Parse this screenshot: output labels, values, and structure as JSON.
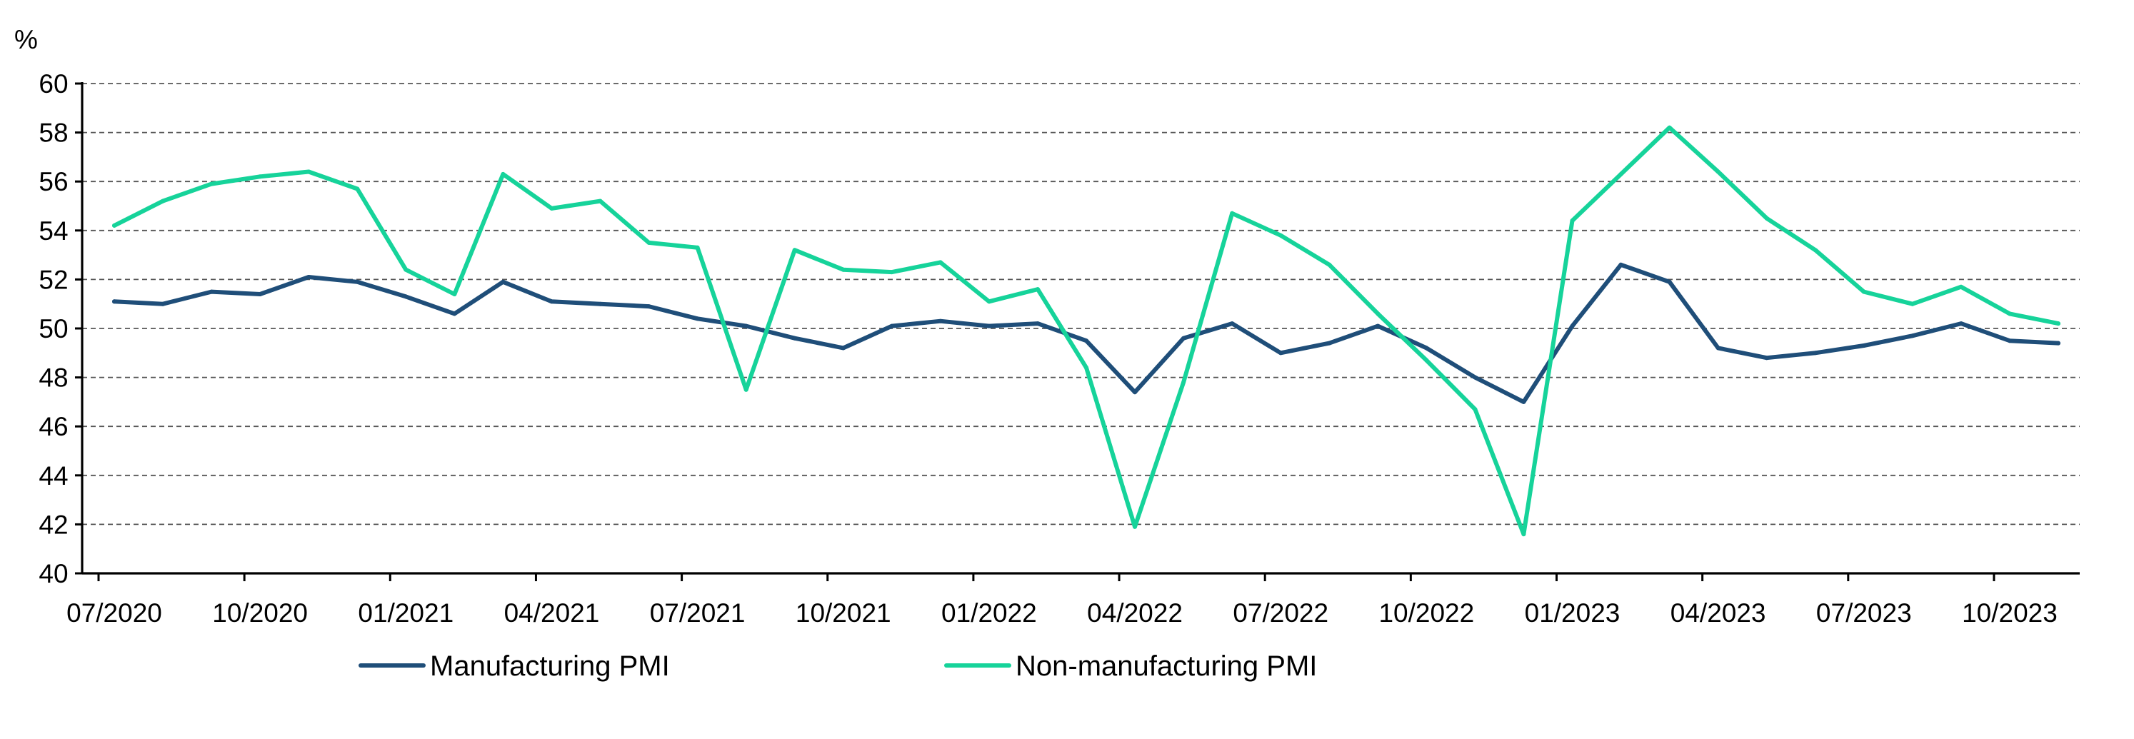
{
  "chart_data": {
    "type": "line",
    "title": "",
    "xlabel": "",
    "ylabel": "%",
    "ylim": [
      40,
      60
    ],
    "yticks": [
      40,
      42,
      44,
      46,
      48,
      50,
      52,
      54,
      56,
      58,
      60
    ],
    "grid": true,
    "legend_position": "bottom",
    "x": [
      "07/2020",
      "08/2020",
      "09/2020",
      "10/2020",
      "11/2020",
      "12/2020",
      "01/2021",
      "02/2021",
      "03/2021",
      "04/2021",
      "05/2021",
      "06/2021",
      "07/2021",
      "08/2021",
      "09/2021",
      "10/2021",
      "11/2021",
      "12/2021",
      "01/2022",
      "02/2022",
      "03/2022",
      "04/2022",
      "05/2022",
      "06/2022",
      "07/2022",
      "08/2022",
      "09/2022",
      "10/2022",
      "11/2022",
      "12/2022",
      "01/2023",
      "02/2023",
      "03/2023",
      "04/2023",
      "05/2023",
      "06/2023",
      "07/2023",
      "08/2023",
      "09/2023",
      "10/2023",
      "11/2023"
    ],
    "xticks": [
      "07/2020",
      "10/2020",
      "01/2021",
      "04/2021",
      "07/2021",
      "10/2021",
      "01/2022",
      "04/2022",
      "07/2022",
      "10/2022",
      "01/2023",
      "04/2023",
      "07/2023",
      "10/2023"
    ],
    "series": [
      {
        "name": "Manufacturing PMI",
        "color": "#1f4e79",
        "values": [
          51.1,
          51.0,
          51.5,
          51.4,
          52.1,
          51.9,
          51.3,
          50.6,
          51.9,
          51.1,
          51.0,
          50.9,
          50.4,
          50.1,
          49.6,
          49.2,
          50.1,
          50.3,
          50.1,
          50.2,
          49.5,
          47.4,
          49.6,
          50.2,
          49.0,
          49.4,
          50.1,
          49.2,
          48.0,
          47.0,
          50.1,
          52.6,
          51.9,
          49.2,
          48.8,
          49.0,
          49.3,
          49.7,
          50.2,
          49.5,
          49.4
        ]
      },
      {
        "name": "Non-manufacturing PMI",
        "color": "#16d39a",
        "values": [
          54.2,
          55.2,
          55.9,
          56.2,
          56.4,
          55.7,
          52.4,
          51.4,
          56.3,
          54.9,
          55.2,
          53.5,
          53.3,
          47.5,
          53.2,
          52.4,
          52.3,
          52.7,
          51.1,
          51.6,
          48.4,
          41.9,
          47.8,
          54.7,
          53.8,
          52.6,
          50.6,
          48.7,
          46.7,
          41.6,
          54.4,
          56.3,
          58.2,
          56.4,
          54.5,
          53.2,
          51.5,
          51.0,
          51.7,
          50.6,
          50.2
        ]
      }
    ]
  }
}
